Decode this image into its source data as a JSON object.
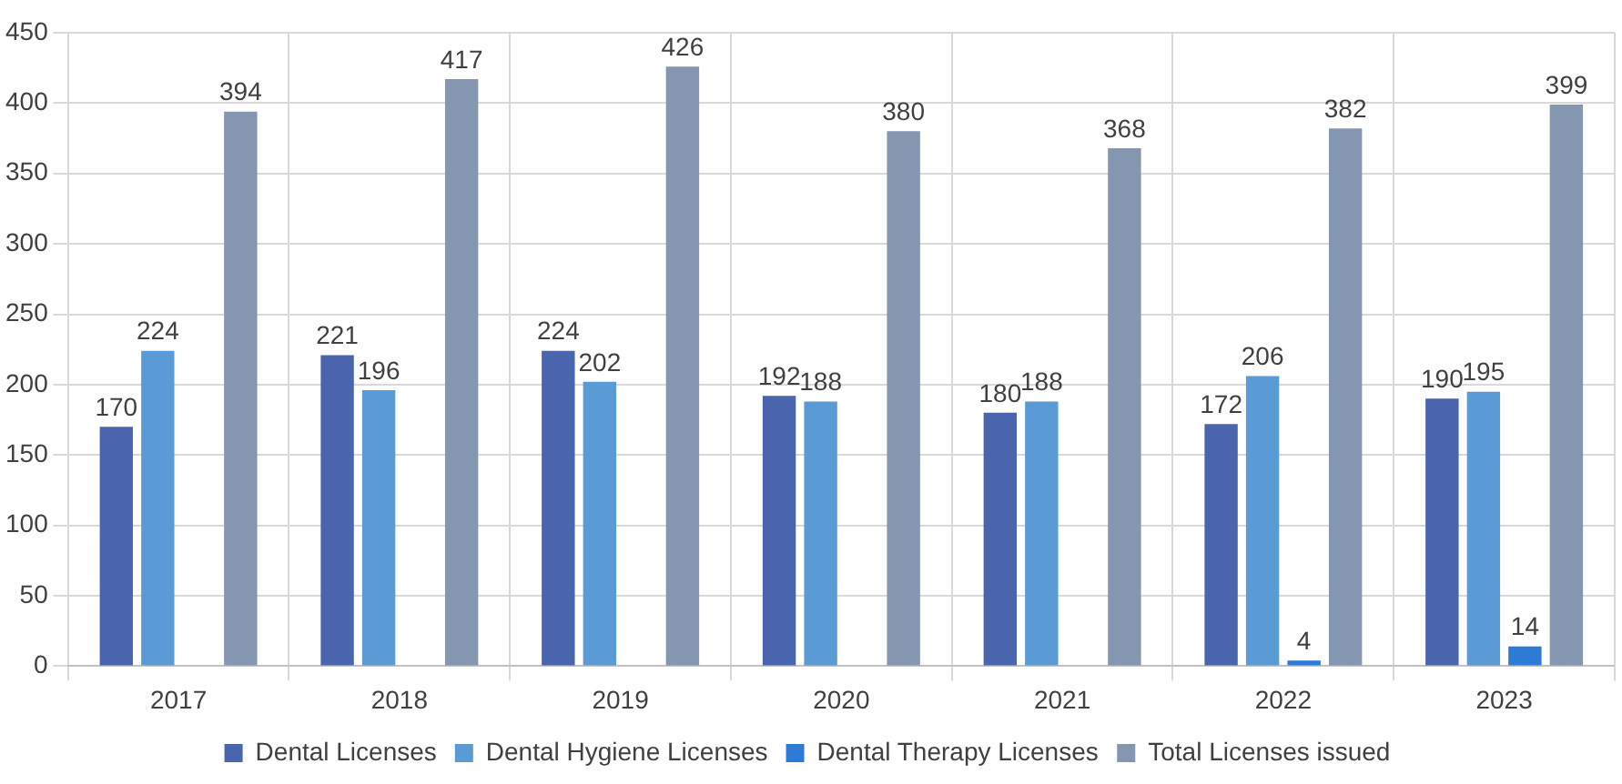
{
  "chart_data": {
    "type": "bar",
    "categories": [
      "2017",
      "2018",
      "2019",
      "2020",
      "2021",
      "2022",
      "2023"
    ],
    "series": [
      {
        "name": "Dental Licenses",
        "color": "#4a64ad",
        "values": [
          170,
          221,
          224,
          192,
          180,
          172,
          190
        ]
      },
      {
        "name": "Dental Hygiene Licenses",
        "color": "#5b9bd5",
        "values": [
          224,
          196,
          202,
          188,
          188,
          206,
          195
        ]
      },
      {
        "name": "Dental Therapy Licenses",
        "color": "#2e7bd6",
        "values": [
          null,
          null,
          null,
          null,
          null,
          4,
          14
        ]
      },
      {
        "name": "Total Licenses issued",
        "color": "#8496b0",
        "values": [
          394,
          417,
          426,
          380,
          368,
          382,
          399
        ]
      }
    ],
    "ylim": [
      0,
      450
    ],
    "yticks": [
      0,
      50,
      100,
      150,
      200,
      250,
      300,
      350,
      400,
      450
    ],
    "grid": true,
    "legend": "bottom",
    "data_labels": true
  }
}
